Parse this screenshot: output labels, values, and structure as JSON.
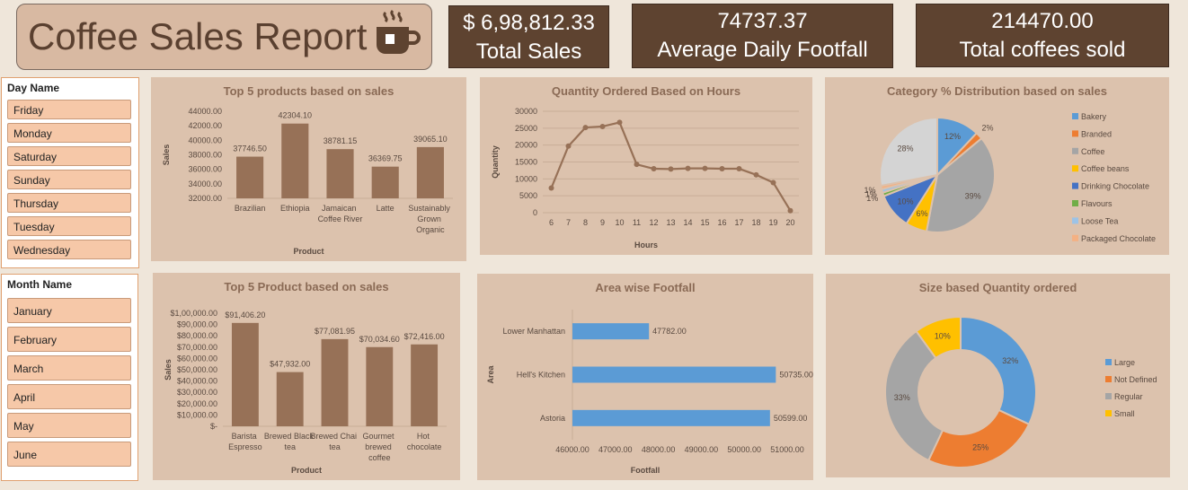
{
  "header": {
    "title": "Coffee Sales Report"
  },
  "kpis": [
    {
      "value": "$ 6,98,812.33",
      "label": "Total Sales"
    },
    {
      "value": "74737.37",
      "label": "Average Daily Footfall"
    },
    {
      "value": "214470.00",
      "label": "Total coffees sold"
    }
  ],
  "slicers": [
    {
      "title": "Day Name",
      "items": [
        "Friday",
        "Monday",
        "Saturday",
        "Sunday",
        "Thursday",
        "Tuesday",
        "Wednesday"
      ]
    },
    {
      "title": "Month Name",
      "items": [
        "January",
        "February",
        "March",
        "April",
        "May",
        "June"
      ]
    }
  ],
  "chart_data": [
    {
      "type": "bar",
      "title": "Top 5 products based on sales",
      "x_label": "Product",
      "y_label": "Sales",
      "color": "#977157",
      "categories": [
        "Brazilian",
        "Ethiopia",
        "Jamaican Coffee River",
        "Latte",
        "Sustainably Grown Organic"
      ],
      "values": [
        37746.5,
        42304.1,
        38781.15,
        36369.75,
        39065.1
      ],
      "value_labels": [
        "37746.50",
        "42304.10",
        "38781.15",
        "36369.75",
        "39065.10"
      ],
      "ylim": [
        32000,
        44000
      ],
      "yticks": [
        {
          "value": 32000,
          "label": "32000.00"
        },
        {
          "value": 34000,
          "label": "34000.00"
        },
        {
          "value": 36000,
          "label": "36000.00"
        },
        {
          "value": 38000,
          "label": "38000.00"
        },
        {
          "value": 40000,
          "label": "40000.00"
        },
        {
          "value": 42000,
          "label": "42000.00"
        },
        {
          "value": 44000,
          "label": "44000.00"
        }
      ]
    },
    {
      "type": "line",
      "title": "Quantity Ordered Based on Hours",
      "x_label": "Hours",
      "y_label": "Quantity",
      "color": "#977157",
      "grid": true,
      "categories": [
        6,
        7,
        8,
        9,
        10,
        11,
        12,
        13,
        14,
        15,
        16,
        17,
        18,
        19,
        20
      ],
      "values": [
        7300,
        19700,
        25200,
        25500,
        26700,
        14300,
        13000,
        12900,
        13100,
        13100,
        13000,
        13000,
        11200,
        8900,
        600
      ],
      "ylim": [
        0,
        30000
      ],
      "yticks": [
        0,
        5000,
        10000,
        15000,
        20000,
        25000,
        30000
      ]
    },
    {
      "type": "pie",
      "title": "Category % Distribution based on sales",
      "categories": [
        "Bakery",
        "Branded",
        "Coffee",
        "Coffee beans",
        "Drinking Chocolate",
        "Flavours",
        "Loose Tea",
        "Packaged Chocolate",
        null
      ],
      "values": [
        12,
        2,
        39,
        6,
        10,
        1,
        1,
        1,
        28
      ],
      "value_labels": [
        "12%",
        "2%",
        "39%",
        "6%",
        "10%",
        "1%",
        "1%",
        "1%",
        "28%"
      ],
      "colors": [
        "#5b9bd5",
        "#ed7d31",
        "#a5a5a5",
        "#ffc000",
        "#4472c4",
        "#70ad47",
        "#9dc3e6",
        "#f4b183",
        "#d4d4d4"
      ]
    },
    {
      "type": "bar",
      "title": "Top 5 Product based on sales",
      "x_label": "Product",
      "y_label": "Sales",
      "color": "#977157",
      "categories": [
        "Barista Espresso",
        "Brewed Black tea",
        "Brewed Chai tea",
        "Gourmet brewed coffee",
        "Hot chocolate"
      ],
      "values": [
        91406.2,
        47932,
        77081.95,
        70034.6,
        72416
      ],
      "value_labels": [
        "$91,406.20",
        "$47,932.00",
        "$77,081.95",
        "$70,034.60",
        "$72,416.00"
      ],
      "ylim": [
        0,
        100000
      ],
      "yticks": [
        {
          "value": 0,
          "label": "$-"
        },
        {
          "value": 10000,
          "label": "$10,000.00"
        },
        {
          "value": 20000,
          "label": "$20,000.00"
        },
        {
          "value": 30000,
          "label": "$30,000.00"
        },
        {
          "value": 40000,
          "label": "$40,000.00"
        },
        {
          "value": 50000,
          "label": "$50,000.00"
        },
        {
          "value": 60000,
          "label": "$60,000.00"
        },
        {
          "value": 70000,
          "label": "$70,000.00"
        },
        {
          "value": 80000,
          "label": "$80,000.00"
        },
        {
          "value": 90000,
          "label": "$90,000.00"
        },
        {
          "value": 100000,
          "label": "$1,00,000.00"
        }
      ]
    },
    {
      "type": "hbar",
      "title": "Area wise Footfall",
      "x_label": "Footfall",
      "y_label": "Area",
      "color": "#5b9bd5",
      "categories": [
        "Lower Manhattan",
        "Hell's Kitchen",
        "Astoria"
      ],
      "values": [
        47782,
        50735,
        50599
      ],
      "value_labels": [
        "47782.00",
        "50735.00",
        "50599.00"
      ],
      "xlim": [
        46000,
        51000
      ],
      "xticks": [
        {
          "value": 46000,
          "label": "46000.00"
        },
        {
          "value": 47000,
          "label": "47000.00"
        },
        {
          "value": 48000,
          "label": "48000.00"
        },
        {
          "value": 49000,
          "label": "49000.00"
        },
        {
          "value": 50000,
          "label": "50000.00"
        },
        {
          "value": 51000,
          "label": "51000.00"
        }
      ]
    },
    {
      "type": "doughnut",
      "title": "Size based Quantity ordered",
      "categories": [
        "Large",
        "Not Defined",
        "Regular",
        "Small"
      ],
      "values": [
        32,
        25,
        33,
        10
      ],
      "value_labels": [
        "32%",
        "25%",
        "33%",
        "10%"
      ],
      "colors": [
        "#5b9bd5",
        "#ed7d31",
        "#a5a5a5",
        "#ffc000"
      ]
    }
  ]
}
